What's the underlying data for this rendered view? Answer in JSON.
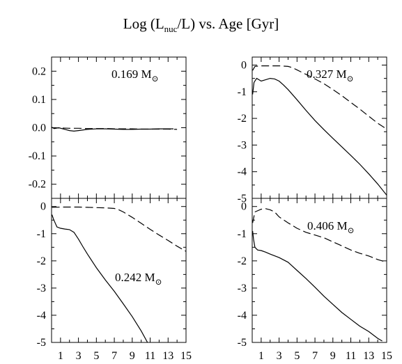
{
  "figure": {
    "title_prefix": "Log (L",
    "title_sub": "nuc",
    "title_suffix": "/L) vs. Age [Gyr]"
  },
  "chart_data": [
    {
      "type": "line",
      "panel": "top-left",
      "annotation": {
        "text": "0.169 M",
        "symbol": "⊙"
      },
      "xlim": [
        0,
        15
      ],
      "ylim": [
        -0.25,
        0.25
      ],
      "xticks": [
        1,
        3,
        5,
        7,
        9,
        11,
        13,
        15
      ],
      "yticks": [
        0.2,
        0.1,
        0.0,
        -0.1,
        -0.2
      ],
      "ytick_labels": [
        "0.2",
        "0.1",
        "0.0",
        "-0.1",
        "-0.2"
      ],
      "series": [
        {
          "style": "solid",
          "x": [
            0.0,
            0.3,
            0.8,
            1.5,
            2.0,
            2.5,
            3.0,
            4.0,
            5.0,
            6.0,
            7.0,
            8.0,
            9.0,
            10.0,
            11.0,
            12.0,
            13.0,
            13.6
          ],
          "y": [
            0.002,
            -0.003,
            0.0,
            -0.006,
            -0.01,
            -0.012,
            -0.01,
            -0.006,
            -0.004,
            -0.004,
            -0.005,
            -0.006,
            -0.006,
            -0.005,
            -0.005,
            -0.004,
            -0.004,
            -0.004
          ]
        },
        {
          "style": "dashed",
          "x": [
            0.0,
            1.0,
            2.0,
            3.0,
            4.0,
            5.0,
            6.0,
            7.0,
            8.0,
            9.0,
            10.0,
            11.0,
            12.0,
            13.0,
            14.0
          ],
          "y": [
            0.0,
            -0.001,
            -0.002,
            -0.002,
            -0.003,
            -0.003,
            -0.003,
            -0.004,
            -0.004,
            -0.004,
            -0.005,
            -0.005,
            -0.005,
            -0.005,
            -0.006
          ]
        }
      ]
    },
    {
      "type": "line",
      "panel": "top-right",
      "annotation": {
        "text": "0.327 M",
        "symbol": "⊙"
      },
      "xlim": [
        0,
        15
      ],
      "ylim": [
        -5,
        0.3
      ],
      "xticks": [
        1,
        3,
        5,
        7,
        9,
        11,
        13,
        15
      ],
      "yticks": [
        0,
        -1,
        -2,
        -3,
        -4,
        -5
      ],
      "ytick_labels": [
        "0",
        "-1",
        "-2",
        "-3",
        "-4",
        "-5"
      ],
      "series": [
        {
          "style": "solid",
          "x": [
            0.05,
            0.2,
            0.5,
            1.0,
            1.5,
            2.0,
            2.5,
            3.0,
            3.5,
            4.0,
            5.0,
            6.0,
            7.0,
            8.0,
            9.0,
            10.0,
            11.0,
            12.0,
            13.0,
            14.0,
            15.0
          ],
          "y": [
            -1.1,
            -0.65,
            -0.5,
            -0.6,
            -0.55,
            -0.5,
            -0.52,
            -0.6,
            -0.75,
            -0.92,
            -1.3,
            -1.7,
            -2.08,
            -2.42,
            -2.75,
            -3.07,
            -3.39,
            -3.72,
            -4.08,
            -4.46,
            -4.88
          ]
        },
        {
          "style": "dashed",
          "x": [
            0.05,
            0.3,
            1.0,
            2.0,
            3.0,
            4.0,
            4.5,
            5.0,
            6.0,
            7.0,
            8.0,
            9.0,
            10.0,
            11.0,
            12.0,
            13.0,
            14.0,
            15.0
          ],
          "y": [
            -0.2,
            -0.05,
            -0.03,
            -0.03,
            -0.03,
            -0.05,
            -0.1,
            -0.18,
            -0.35,
            -0.52,
            -0.7,
            -0.92,
            -1.15,
            -1.4,
            -1.65,
            -1.92,
            -2.18,
            -2.4
          ]
        }
      ]
    },
    {
      "type": "line",
      "panel": "bottom-left",
      "annotation": {
        "text": "0.242 M",
        "symbol": "⊙"
      },
      "xlim": [
        0,
        15
      ],
      "ylim": [
        -5,
        0.3
      ],
      "xticks": [
        1,
        3,
        5,
        7,
        9,
        11,
        13,
        15
      ],
      "xtick_labels": [
        "1",
        "3",
        "5",
        "7",
        "9",
        "11",
        "13",
        "15"
      ],
      "yticks": [
        0,
        -1,
        -2,
        -3,
        -4,
        -5
      ],
      "ytick_labels": [
        "0",
        "-1",
        "-2",
        "-3",
        "-4",
        "-5"
      ],
      "series": [
        {
          "style": "solid",
          "x": [
            0.05,
            0.2,
            0.4,
            0.6,
            1.0,
            1.5,
            2.0,
            2.5,
            3.0,
            3.5,
            4.0,
            5.0,
            6.0,
            7.0,
            8.0,
            9.0,
            10.0,
            10.7
          ],
          "y": [
            -0.3,
            -0.45,
            -0.6,
            -0.75,
            -0.8,
            -0.83,
            -0.85,
            -0.95,
            -1.2,
            -1.48,
            -1.75,
            -2.25,
            -2.7,
            -3.12,
            -3.58,
            -4.05,
            -4.58,
            -5.0
          ]
        },
        {
          "style": "dashed",
          "x": [
            0.05,
            1.0,
            2.0,
            3.0,
            4.0,
            5.0,
            6.0,
            7.0,
            7.5,
            8.0,
            9.0,
            10.0,
            11.0,
            12.0,
            13.0,
            14.0,
            15.0
          ],
          "y": [
            -0.03,
            -0.02,
            -0.02,
            -0.02,
            -0.03,
            -0.04,
            -0.05,
            -0.07,
            -0.12,
            -0.2,
            -0.4,
            -0.62,
            -0.84,
            -1.05,
            -1.25,
            -1.46,
            -1.65
          ]
        }
      ]
    },
    {
      "type": "line",
      "panel": "bottom-right",
      "annotation": {
        "text": "0.406 M",
        "symbol": "⊙"
      },
      "xlim": [
        0,
        15
      ],
      "ylim": [
        -5,
        0.3
      ],
      "xticks": [
        1,
        3,
        5,
        7,
        9,
        11,
        13,
        15
      ],
      "xtick_labels": [
        "1",
        "3",
        "5",
        "7",
        "9",
        "11",
        "13",
        "15"
      ],
      "yticks": [
        0,
        -1,
        -2,
        -3,
        -4,
        -5
      ],
      "ytick_labels": [
        "0",
        "-1",
        "-2",
        "-3",
        "-4",
        "-5"
      ],
      "series": [
        {
          "style": "solid",
          "x": [
            0.05,
            0.15,
            0.3,
            0.6,
            1.0,
            1.5,
            2.0,
            3.0,
            4.0,
            5.0,
            6.0,
            7.0,
            8.0,
            9.0,
            10.0,
            11.0,
            12.0,
            13.0,
            14.0,
            14.5
          ],
          "y": [
            -0.9,
            -1.2,
            -1.5,
            -1.6,
            -1.62,
            -1.68,
            -1.75,
            -1.88,
            -2.05,
            -2.35,
            -2.65,
            -2.97,
            -3.3,
            -3.6,
            -3.9,
            -4.15,
            -4.4,
            -4.6,
            -4.85,
            -4.95
          ]
        },
        {
          "style": "dashed",
          "x": [
            0.05,
            0.3,
            1.0,
            1.5,
            2.0,
            2.5,
            3.0,
            4.0,
            5.0,
            6.0,
            7.0,
            8.0,
            9.0,
            10.0,
            11.0,
            12.0,
            13.0,
            14.0,
            15.0
          ],
          "y": [
            -0.6,
            -0.2,
            -0.1,
            -0.08,
            -0.12,
            -0.2,
            -0.38,
            -0.6,
            -0.8,
            -0.95,
            -1.05,
            -1.15,
            -1.3,
            -1.45,
            -1.6,
            -1.72,
            -1.82,
            -1.95,
            -2.05
          ]
        }
      ]
    }
  ]
}
